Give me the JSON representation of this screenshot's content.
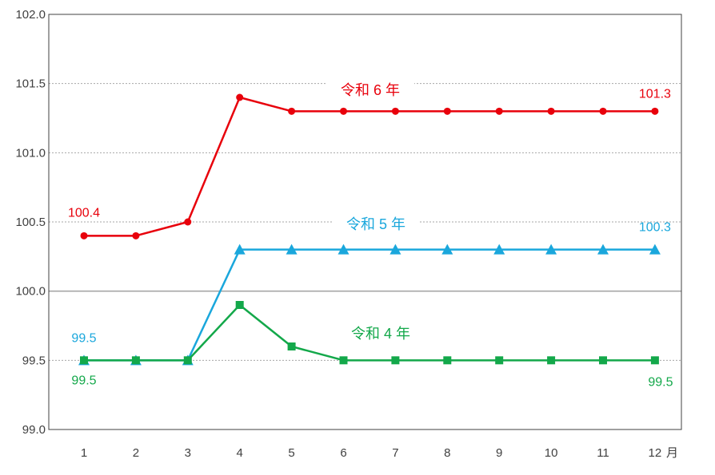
{
  "chart_data": {
    "type": "line",
    "categories": [
      "1",
      "2",
      "3",
      "4",
      "5",
      "6",
      "7",
      "8",
      "9",
      "10",
      "11",
      "12"
    ],
    "x_unit_label": "月",
    "ylim": [
      99.0,
      102.0
    ],
    "yticks": [
      "99.0",
      "99.5",
      "100.0",
      "100.5",
      "101.0",
      "101.5",
      "102.0"
    ],
    "grid": "horizontal dotted, solid reference line at 100.0",
    "series": [
      {
        "name": "令和 6 年",
        "color": "#e8000b",
        "marker": "circle",
        "values": [
          100.4,
          100.4,
          100.5,
          101.4,
          101.3,
          101.3,
          101.3,
          101.3,
          101.3,
          101.3,
          101.3,
          101.3
        ],
        "start_label": "100.4",
        "end_label": "101.3"
      },
      {
        "name": "令和 5 年",
        "color": "#1aa7dc",
        "marker": "triangle",
        "values": [
          99.5,
          99.5,
          99.5,
          100.3,
          100.3,
          100.3,
          100.3,
          100.3,
          100.3,
          100.3,
          100.3,
          100.3
        ],
        "start_label": "99.5",
        "end_label": "100.3"
      },
      {
        "name": "令和 4 年",
        "color": "#13a84a",
        "marker": "square",
        "values": [
          99.5,
          99.5,
          99.5,
          99.9,
          99.6,
          99.5,
          99.5,
          99.5,
          99.5,
          99.5,
          99.5,
          99.5
        ],
        "start_label": "99.5",
        "end_label": "99.5"
      }
    ]
  }
}
